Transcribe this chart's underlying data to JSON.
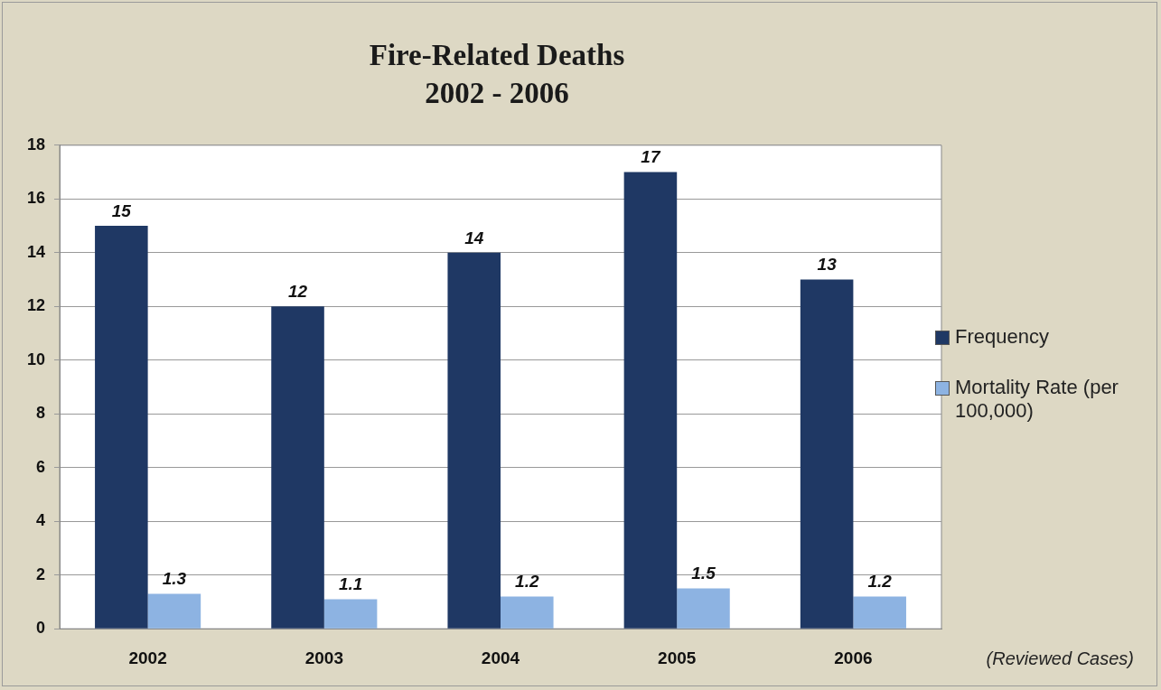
{
  "chart_data": {
    "type": "bar",
    "title": "Fire-Related Deaths",
    "subtitle": "2002 - 2006",
    "categories": [
      "2002",
      "2003",
      "2004",
      "2005",
      "2006"
    ],
    "series": [
      {
        "name": "Frequency",
        "color": "#1f3864",
        "values": [
          15,
          12,
          14,
          17,
          13
        ]
      },
      {
        "name": "Mortality Rate (per 100,000)",
        "color": "#8db3e2",
        "values": [
          1.3,
          1.1,
          1.2,
          1.5,
          1.2
        ]
      }
    ],
    "ylim": [
      0,
      18
    ],
    "yticks": [
      0,
      2,
      4,
      6,
      8,
      10,
      12,
      14,
      16,
      18
    ],
    "grid": "y",
    "legend": "right",
    "data_labels": true,
    "annotations": [
      "(Reviewed Cases)"
    ]
  }
}
